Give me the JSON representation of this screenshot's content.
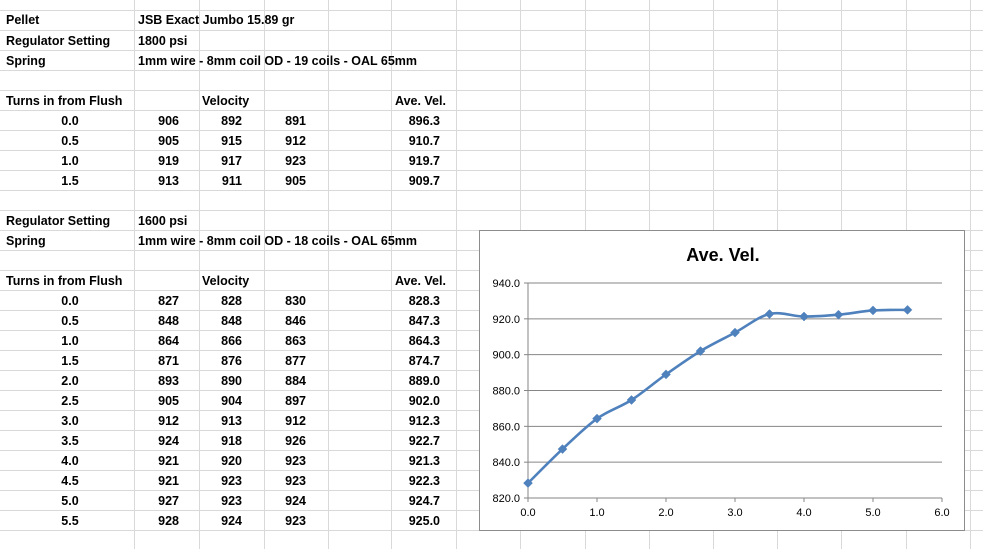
{
  "header": {
    "pellet_label": "Pellet",
    "pellet_value": "JSB Exact Jumbo 15.89 gr"
  },
  "section1": {
    "regulator_label": "Regulator Setting",
    "regulator_value": "1800 psi",
    "spring_label": "Spring",
    "spring_value": "1mm wire - 8mm coil OD - 19 coils - OAL 65mm",
    "col_turns": "Turns in from Flush",
    "col_velocity": "Velocity",
    "col_ave": "Ave. Vel.",
    "rows": [
      [
        "0.0",
        "906",
        "892",
        "891",
        "896.3"
      ],
      [
        "0.5",
        "905",
        "915",
        "912",
        "910.7"
      ],
      [
        "1.0",
        "919",
        "917",
        "923",
        "919.7"
      ],
      [
        "1.5",
        "913",
        "911",
        "905",
        "909.7"
      ]
    ]
  },
  "section2": {
    "regulator_label": "Regulator Setting",
    "regulator_value": "1600 psi",
    "spring_label": "Spring",
    "spring_value": "1mm wire - 8mm coil OD - 18 coils - OAL 65mm",
    "col_turns": "Turns in from Flush",
    "col_velocity": "Velocity",
    "col_ave": "Ave. Vel.",
    "rows": [
      [
        "0.0",
        "827",
        "828",
        "830",
        "828.3"
      ],
      [
        "0.5",
        "848",
        "848",
        "846",
        "847.3"
      ],
      [
        "1.0",
        "864",
        "866",
        "863",
        "864.3"
      ],
      [
        "1.5",
        "871",
        "876",
        "877",
        "874.7"
      ],
      [
        "2.0",
        "893",
        "890",
        "884",
        "889.0"
      ],
      [
        "2.5",
        "905",
        "904",
        "897",
        "902.0"
      ],
      [
        "3.0",
        "912",
        "913",
        "912",
        "912.3"
      ],
      [
        "3.5",
        "924",
        "918",
        "926",
        "922.7"
      ],
      [
        "4.0",
        "921",
        "920",
        "923",
        "921.3"
      ],
      [
        "4.5",
        "921",
        "923",
        "923",
        "922.3"
      ],
      [
        "5.0",
        "927",
        "923",
        "924",
        "924.7"
      ],
      [
        "5.5",
        "928",
        "924",
        "923",
        "925.0"
      ]
    ]
  },
  "colors": {
    "gridline": "#d9d9d9",
    "series": "#4f81bd",
    "chart_gridline": "#868686"
  },
  "chart_data": {
    "type": "line",
    "title": "Ave. Vel.",
    "xlabel": "",
    "ylabel": "",
    "xlim": [
      0.0,
      6.0
    ],
    "ylim": [
      820.0,
      940.0
    ],
    "xticks": [
      "0.0",
      "1.0",
      "2.0",
      "3.0",
      "4.0",
      "5.0",
      "6.0"
    ],
    "yticks": [
      "820.0",
      "840.0",
      "860.0",
      "880.0",
      "900.0",
      "920.0",
      "940.0"
    ],
    "grid": "horizontal major gridlines",
    "legend": "none",
    "marker": "diamond",
    "x": [
      0.0,
      0.5,
      1.0,
      1.5,
      2.0,
      2.5,
      3.0,
      3.5,
      4.0,
      4.5,
      5.0,
      5.5
    ],
    "values": [
      828.3,
      847.3,
      864.3,
      874.7,
      889.0,
      902.0,
      912.3,
      922.7,
      921.3,
      922.3,
      924.7,
      925.0
    ]
  }
}
